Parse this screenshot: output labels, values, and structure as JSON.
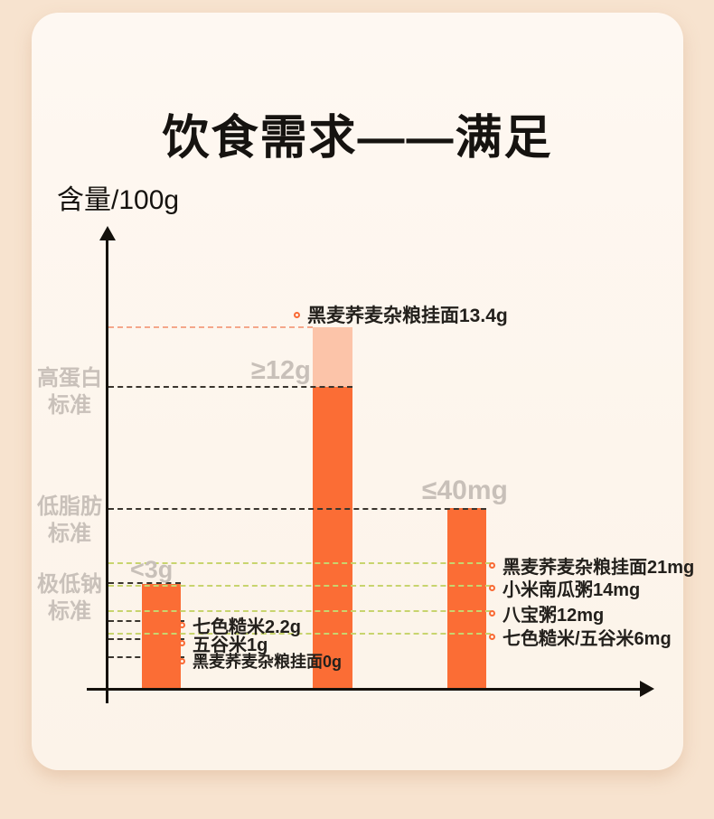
{
  "chart_data": {
    "type": "bar",
    "title": "饮食需求——满足",
    "ylabel": "含量/100g",
    "legend_position": "none",
    "grid": "dashed-guides",
    "accent_colors": {
      "bar_orange": "#fb6d35",
      "bar_excess_peach": "#fcc4a9",
      "guide_green": "#c8d46e",
      "guide_salmon": "#f5a78a",
      "gray_text": "#c8c0b9"
    },
    "standards": [
      {
        "line1": "高蛋白",
        "line2": "标准",
        "threshold": "≥12g"
      },
      {
        "line1": "低脂肪",
        "line2": "标准",
        "threshold": "<3g"
      },
      {
        "line1": "极低钠",
        "line2": "标准",
        "threshold": "≤40mg"
      }
    ],
    "bars": [
      {
        "id": "fat",
        "nutrient": "脂肪",
        "threshold_label": "<3g",
        "bar_value": 3,
        "unit": "g",
        "value_labels": [
          {
            "text": "七色糙米2.2g",
            "product": "七色糙米",
            "value": 2.2,
            "unit": "g"
          },
          {
            "text": "五谷米1g",
            "product": "五谷米",
            "value": 1,
            "unit": "g"
          },
          {
            "text": "黑麦荞麦杂粮挂面0g",
            "product": "黑麦荞麦杂粮挂面",
            "value": 0,
            "unit": "g"
          }
        ]
      },
      {
        "id": "protein",
        "nutrient": "蛋白质",
        "threshold_label": "≥12g",
        "bar_value": 12,
        "excess_value": 13.4,
        "unit": "g",
        "peak_label": {
          "text": "黑麦荞麦杂粮挂面13.4g",
          "product": "黑麦荞麦杂粮挂面",
          "value": 13.4,
          "unit": "g"
        }
      },
      {
        "id": "sodium",
        "nutrient": "钠",
        "threshold_label": "≤40mg",
        "bar_value": 40,
        "unit": "mg",
        "value_labels": [
          {
            "text": "黑麦荞麦杂粮挂面21mg",
            "product": "黑麦荞麦杂粮挂面",
            "value": 21,
            "unit": "mg"
          },
          {
            "text": "小米南瓜粥14mg",
            "product": "小米南瓜粥",
            "value": 14,
            "unit": "mg"
          },
          {
            "text": "八宝粥12mg",
            "product": "八宝粥",
            "value": 12,
            "unit": "mg"
          },
          {
            "text": "七色糙米/五谷米6mg",
            "product": "七色糙米/五谷米",
            "value": 6,
            "unit": "mg"
          }
        ]
      }
    ]
  }
}
